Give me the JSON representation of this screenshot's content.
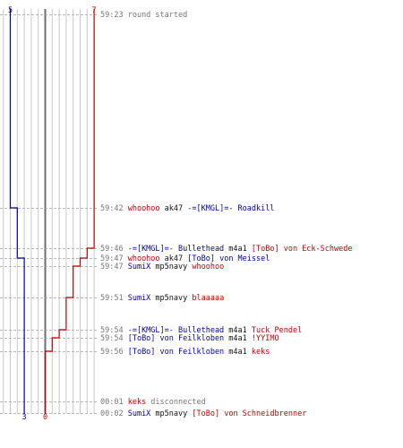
{
  "colors": {
    "blue": "#0000a0",
    "red": "#c00000",
    "black": "#111111",
    "gray": "#777777",
    "grid": "#c8c8c8",
    "center": "#6e6e6e"
  },
  "chart_data": {
    "type": "line",
    "title": "",
    "start_label": {
      "blue": "5",
      "red": "7"
    },
    "end_label": {
      "blue": "3",
      "red": "0"
    },
    "series": [
      {
        "color": "blue",
        "steps": [
          5,
          4,
          3
        ]
      },
      {
        "color": "red",
        "steps": [
          7,
          6,
          5,
          4,
          3,
          2,
          1,
          0
        ]
      }
    ]
  },
  "log": [
    {
      "time": "59:23",
      "parts": [
        {
          "text": "round started",
          "color": "gray"
        }
      ]
    },
    {
      "time": "59:42",
      "parts": [
        {
          "text": "whoohoo",
          "color": "red"
        },
        {
          "text": "ak47",
          "color": "black"
        },
        {
          "text": "-=[KMGL]=- Roadkill",
          "color": "blue"
        }
      ]
    },
    {
      "time": "59:46",
      "parts": [
        {
          "text": "-=[KMGL]=- Bullethead",
          "color": "blue"
        },
        {
          "text": "m4a1",
          "color": "black"
        },
        {
          "text": "[ToBo] von Eck-Schwede",
          "color": "red"
        }
      ]
    },
    {
      "time": "59:47",
      "parts": [
        {
          "text": "whoohoo",
          "color": "red"
        },
        {
          "text": "ak47",
          "color": "black"
        },
        {
          "text": "[ToBo] von Meissel",
          "color": "blue"
        }
      ]
    },
    {
      "time": "59:47",
      "parts": [
        {
          "text": "SumiX",
          "color": "blue"
        },
        {
          "text": "mp5navy",
          "color": "black"
        },
        {
          "text": "whoohoo",
          "color": "red"
        }
      ]
    },
    {
      "time": "59:51",
      "parts": [
        {
          "text": "SumiX",
          "color": "blue"
        },
        {
          "text": "mp5navy",
          "color": "black"
        },
        {
          "text": "blaaaaa",
          "color": "red"
        }
      ]
    },
    {
      "time": "59:54",
      "parts": [
        {
          "text": "-=[KMGL]=- Bullethead",
          "color": "blue"
        },
        {
          "text": "m4a1",
          "color": "black"
        },
        {
          "text": "Tuck Pendel",
          "color": "red"
        }
      ]
    },
    {
      "time": "59:54",
      "parts": [
        {
          "text": "[ToBo] von Feilkloben",
          "color": "blue"
        },
        {
          "text": "m4a1",
          "color": "black"
        },
        {
          "text": "!YYIMO",
          "color": "red"
        }
      ]
    },
    {
      "time": "59:56",
      "parts": [
        {
          "text": "[ToBo] von Feilkloben",
          "color": "blue"
        },
        {
          "text": "m4a1",
          "color": "black"
        },
        {
          "text": "keks",
          "color": "red"
        }
      ]
    },
    {
      "time": "00:01",
      "parts": [
        {
          "text": "keks",
          "color": "red"
        },
        {
          "text": "disconnected",
          "color": "gray"
        }
      ]
    },
    {
      "time": "00:02",
      "parts": [
        {
          "text": "SumiX",
          "color": "blue"
        },
        {
          "text": "mp5navy",
          "color": "black"
        },
        {
          "text": "[ToBo] von Schneidbrenner",
          "color": "red"
        }
      ]
    }
  ]
}
